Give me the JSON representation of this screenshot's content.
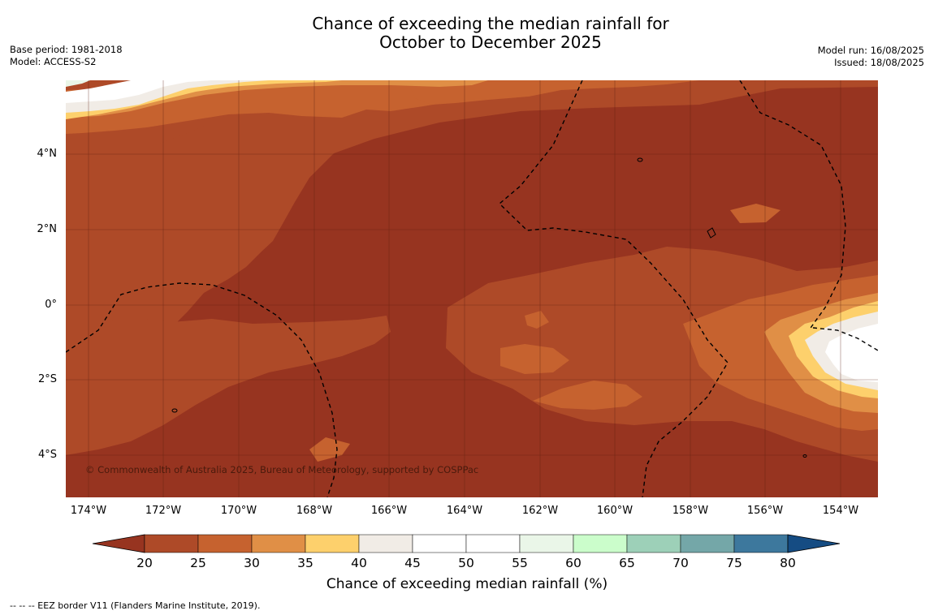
{
  "title_line1": "Chance of exceeding the median rainfall for",
  "title_line2": "October to December 2025",
  "meta_left": [
    "Base period: 1981-2018",
    "Model: ACCESS-S2"
  ],
  "meta_right": [
    "Model run: 16/08/2025",
    "Issued: 18/08/2025"
  ],
  "map": {
    "lat_labels": [
      "4°N",
      "2°N",
      "0°",
      "2°S",
      "4°S"
    ],
    "lon_labels": [
      "174°W",
      "172°W",
      "170°W",
      "168°W",
      "166°W",
      "164°W",
      "162°W",
      "160°W",
      "158°W",
      "156°W",
      "154°W"
    ],
    "copyright": "© Commonwealth of Australia 2025, Bureau of Meteorology, supported by COSPPac"
  },
  "colorbar": {
    "ticks": [
      "20",
      "25",
      "30",
      "35",
      "40",
      "45",
      "50",
      "55",
      "60",
      "65",
      "70",
      "75",
      "80"
    ],
    "colors": [
      "#ae4a28",
      "#c6622f",
      "#e08f46",
      "#fdd06c",
      "#f1ece6",
      "#ffffff",
      "#ffffff",
      "#eaf6e8",
      "#cbfdcb",
      "#9dd0b8",
      "#74a7a8",
      "#3d789d"
    ],
    "under_color": "#973420",
    "over_color": "#154c83",
    "title": "Chance of exceeding median rainfall (%)"
  },
  "footer": "--  --  -- EEZ border V11 (Flanders Marine Institute, 2019)."
}
